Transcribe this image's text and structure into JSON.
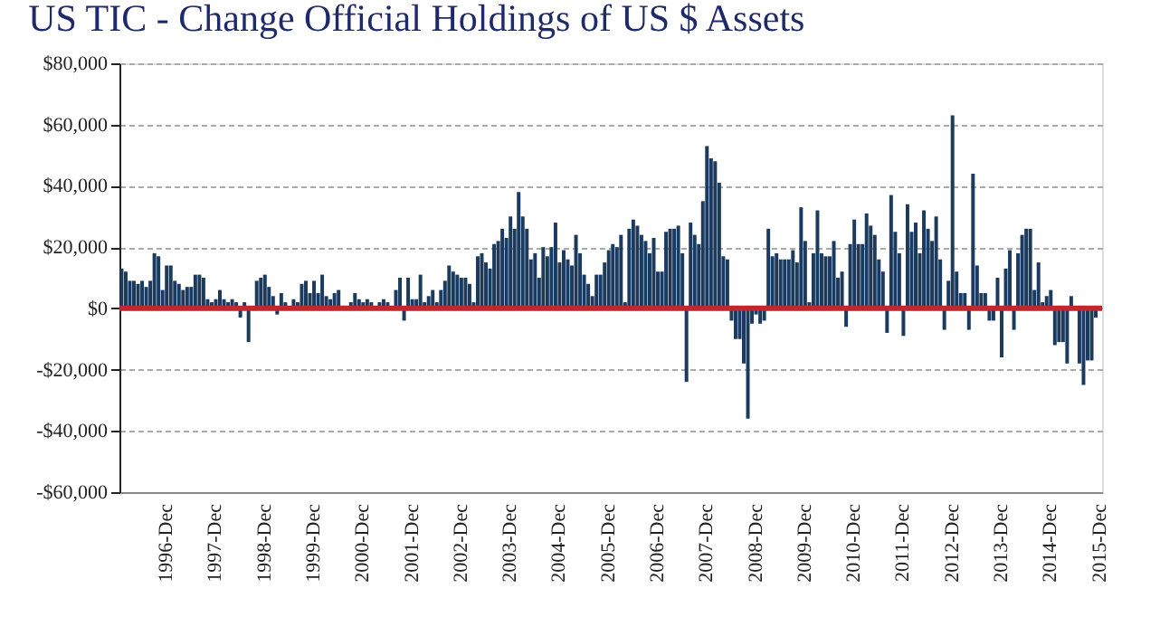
{
  "chart_data": {
    "type": "bar",
    "title": "US TIC - Change Official Holdings of US $ Assets",
    "categories": [
      null,
      null,
      null,
      null,
      null,
      null,
      null,
      null,
      null,
      null,
      null,
      "1996-Dec",
      null,
      null,
      null,
      null,
      null,
      null,
      null,
      null,
      null,
      null,
      null,
      "1997-Dec",
      null,
      null,
      null,
      null,
      null,
      null,
      null,
      null,
      null,
      null,
      null,
      "1998-Dec",
      null,
      null,
      null,
      null,
      null,
      null,
      null,
      null,
      null,
      null,
      null,
      "1999-Dec",
      null,
      null,
      null,
      null,
      null,
      null,
      null,
      null,
      null,
      null,
      null,
      "2000-Dec",
      null,
      null,
      null,
      null,
      null,
      null,
      null,
      null,
      null,
      null,
      null,
      "2001-Dec",
      null,
      null,
      null,
      null,
      null,
      null,
      null,
      null,
      null,
      null,
      null,
      "2002-Dec",
      null,
      null,
      null,
      null,
      null,
      null,
      null,
      null,
      null,
      null,
      null,
      "2003-Dec",
      null,
      null,
      null,
      null,
      null,
      null,
      null,
      null,
      null,
      null,
      null,
      "2004-Dec",
      null,
      null,
      null,
      null,
      null,
      null,
      null,
      null,
      null,
      null,
      null,
      "2005-Dec",
      null,
      null,
      null,
      null,
      null,
      null,
      null,
      null,
      null,
      null,
      null,
      "2006-Dec",
      null,
      null,
      null,
      null,
      null,
      null,
      null,
      null,
      null,
      null,
      null,
      "2007-Dec",
      null,
      null,
      null,
      null,
      null,
      null,
      null,
      null,
      null,
      null,
      null,
      "2008-Dec",
      null,
      null,
      null,
      null,
      null,
      null,
      null,
      null,
      null,
      null,
      null,
      "2009-Dec",
      null,
      null,
      null,
      null,
      null,
      null,
      null,
      null,
      null,
      null,
      null,
      "2010-Dec",
      null,
      null,
      null,
      null,
      null,
      null,
      null,
      null,
      null,
      null,
      null,
      "2011-Dec",
      null,
      null,
      null,
      null,
      null,
      null,
      null,
      null,
      null,
      null,
      null,
      "2012-Dec",
      null,
      null,
      null,
      null,
      null,
      null,
      null,
      null,
      null,
      null,
      null,
      "2013-Dec",
      null,
      null,
      null,
      null,
      null,
      null,
      null,
      null,
      null,
      null,
      null,
      "2014-Dec",
      null,
      null,
      null,
      null,
      null,
      null,
      null,
      null,
      null,
      null,
      null,
      "2015-Dec"
    ],
    "values": [
      13000,
      12000,
      9000,
      9000,
      8000,
      9000,
      7000,
      9000,
      18000,
      17000,
      6000,
      14000,
      14000,
      9000,
      8000,
      6000,
      7000,
      7000,
      11000,
      11000,
      10000,
      3000,
      2000,
      3000,
      6000,
      3000,
      2000,
      3000,
      2000,
      -3000,
      2000,
      -11000,
      null,
      9000,
      10000,
      11000,
      7000,
      4000,
      -2000,
      5000,
      2000,
      null,
      3000,
      2000,
      8000,
      9000,
      5000,
      9000,
      5000,
      11000,
      4000,
      3000,
      5000,
      6000,
      null,
      null,
      2000,
      5000,
      3000,
      2000,
      3000,
      2000,
      null,
      2000,
      3000,
      2000,
      null,
      6000,
      10000,
      -4000,
      10000,
      3000,
      3000,
      11000,
      2000,
      4000,
      6000,
      2000,
      6000,
      9000,
      14000,
      12000,
      11000,
      10000,
      10000,
      8000,
      2000,
      17000,
      18000,
      15000,
      13000,
      21000,
      22000,
      26000,
      23000,
      30000,
      26000,
      38000,
      30000,
      26000,
      16000,
      18000,
      10000,
      20000,
      17000,
      20000,
      28000,
      15000,
      19000,
      16000,
      14000,
      24000,
      18000,
      11000,
      8000,
      4000,
      11000,
      11000,
      15000,
      19000,
      21000,
      20000,
      24000,
      2000,
      26000,
      29000,
      27000,
      24000,
      22000,
      18000,
      23000,
      12000,
      12000,
      25000,
      26000,
      26000,
      27000,
      18000,
      -24000,
      28000,
      24000,
      21000,
      35000,
      53000,
      49000,
      48000,
      41000,
      17000,
      16000,
      -4000,
      -10000,
      -10000,
      -18000,
      -36000,
      -5000,
      -2000,
      -5000,
      -4000,
      26000,
      17000,
      18000,
      16000,
      16000,
      16000,
      19000,
      15000,
      33000,
      22000,
      2000,
      18000,
      32000,
      18000,
      17000,
      17000,
      22000,
      10000,
      12000,
      -6000,
      21000,
      29000,
      21000,
      21000,
      31000,
      27000,
      24000,
      16000,
      12000,
      -8000,
      37000,
      25000,
      18000,
      -9000,
      34000,
      25000,
      28000,
      18000,
      32000,
      26000,
      22000,
      30000,
      16000,
      -7000,
      9000,
      63000,
      12000,
      5000,
      5000,
      -7000,
      44000,
      14000,
      5000,
      5000,
      -4000,
      -4000,
      10000,
      -16000,
      13000,
      19000,
      -7000,
      18000,
      24000,
      26000,
      26000,
      6000,
      15000,
      2000,
      4000,
      6000,
      -12000,
      -11000,
      -11000,
      -18000,
      4000,
      0,
      -18000,
      -25000,
      -17000,
      -17000,
      -3000,
      null
    ],
    "color": "#1b3a5f",
    "ylim": [
      -60000,
      80000
    ],
    "yticks": [
      {
        "value": -60000,
        "label": "-$60,000"
      },
      {
        "value": -40000,
        "label": "-$40,000"
      },
      {
        "value": -20000,
        "label": "-$20,000"
      },
      {
        "value": 0,
        "label": "$0"
      },
      {
        "value": 20000,
        "label": "$20,000"
      },
      {
        "value": 40000,
        "label": "$40,000"
      },
      {
        "value": 60000,
        "label": "$60,000"
      },
      {
        "value": 80000,
        "label": "$80,000"
      }
    ],
    "grid": "y",
    "ref_lines": [
      {
        "axis": "y",
        "value": 0,
        "color": "#c0282d"
      }
    ]
  }
}
